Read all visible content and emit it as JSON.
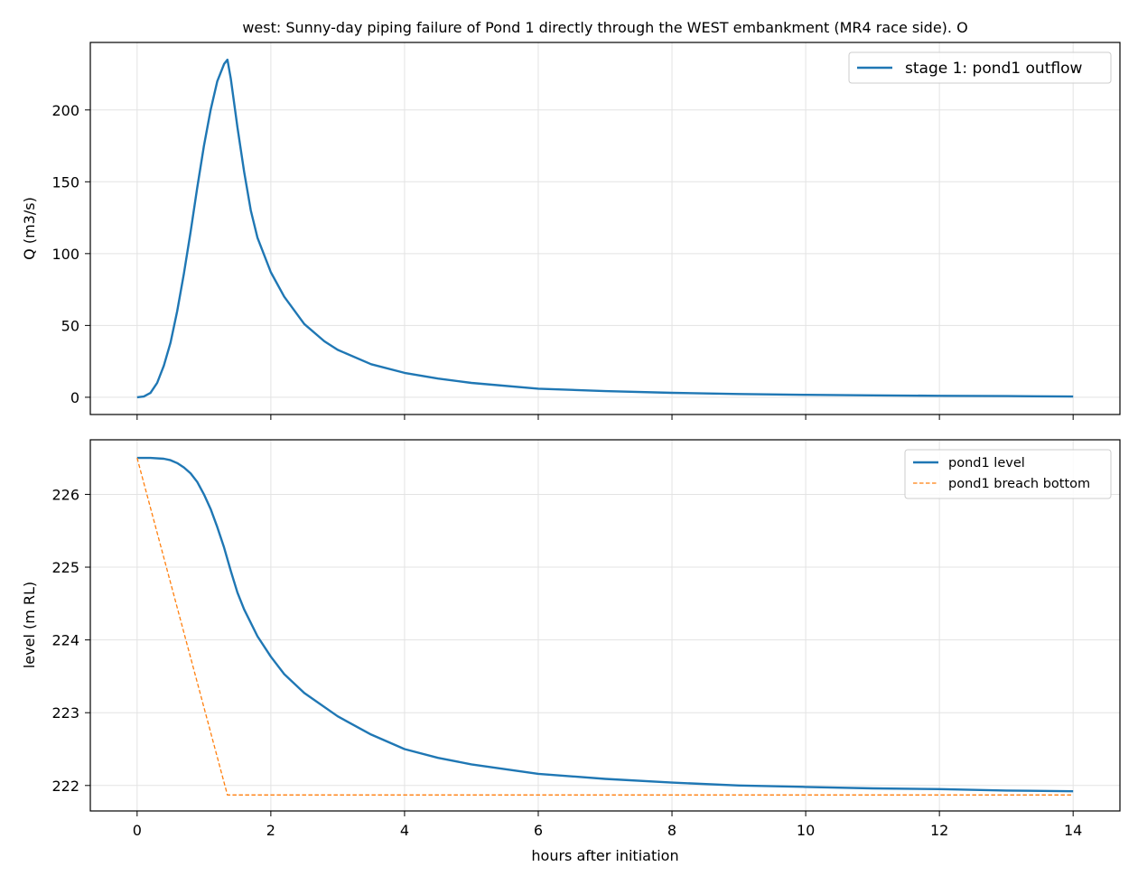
{
  "chart_data": [
    {
      "type": "line",
      "title": "west: Sunny-day piping failure of Pond 1 directly through the WEST embankment (MR4 race side). O",
      "xlabel": "",
      "ylabel": "Q (m3/s)",
      "xlim": [
        -0.7,
        14.7
      ],
      "ylim": [
        -12,
        247
      ],
      "xticks": [
        0,
        2,
        4,
        6,
        8,
        10,
        12,
        14
      ],
      "yticks": [
        0,
        50,
        100,
        150,
        200
      ],
      "grid": true,
      "legend_position": "top-right",
      "series": [
        {
          "name": "stage 1: pond1 outflow",
          "color": "#1f77b4",
          "style": "solid",
          "x": [
            0,
            0.1,
            0.2,
            0.3,
            0.4,
            0.5,
            0.6,
            0.7,
            0.8,
            0.9,
            1.0,
            1.1,
            1.2,
            1.3,
            1.35,
            1.4,
            1.5,
            1.6,
            1.7,
            1.8,
            2.0,
            2.2,
            2.5,
            2.8,
            3.0,
            3.5,
            4.0,
            4.5,
            5.0,
            6.0,
            7.0,
            8.0,
            9.0,
            10.0,
            11.0,
            12.0,
            13.0,
            14.0
          ],
          "y": [
            0,
            0.5,
            3,
            10,
            22,
            38,
            60,
            86,
            115,
            146,
            175,
            200,
            220,
            232,
            235,
            222,
            188,
            157,
            130,
            111,
            87,
            70,
            51,
            39,
            33,
            23,
            17,
            13,
            10,
            6,
            4.3,
            3.1,
            2.3,
            1.7,
            1.3,
            1.0,
            0.8,
            0.5
          ]
        }
      ]
    },
    {
      "type": "line",
      "xlabel": "hours after initiation",
      "ylabel": "level (m RL)",
      "xlim": [
        -0.7,
        14.7
      ],
      "ylim": [
        221.65,
        226.75
      ],
      "xticks": [
        0,
        2,
        4,
        6,
        8,
        10,
        12,
        14
      ],
      "yticks": [
        222,
        223,
        224,
        225,
        226
      ],
      "grid": true,
      "legend_position": "top-right",
      "series": [
        {
          "name": "pond1 level",
          "color": "#1f77b4",
          "style": "solid",
          "x": [
            0,
            0.2,
            0.4,
            0.5,
            0.6,
            0.7,
            0.8,
            0.9,
            1.0,
            1.1,
            1.2,
            1.3,
            1.4,
            1.5,
            1.6,
            1.8,
            2.0,
            2.2,
            2.5,
            3.0,
            3.5,
            4.0,
            4.5,
            5.0,
            6.0,
            7.0,
            8.0,
            9.0,
            10.0,
            11.0,
            12.0,
            13.0,
            14.0
          ],
          "y": [
            226.5,
            226.5,
            226.49,
            226.47,
            226.43,
            226.37,
            226.29,
            226.17,
            226.0,
            225.8,
            225.55,
            225.27,
            224.95,
            224.65,
            224.42,
            224.05,
            223.77,
            223.53,
            223.27,
            222.95,
            222.7,
            222.5,
            222.38,
            222.29,
            222.16,
            222.09,
            222.04,
            222.0,
            221.98,
            221.96,
            221.95,
            221.93,
            221.92
          ]
        },
        {
          "name": "pond1 breach bottom",
          "color": "#ff7f0e",
          "style": "dashed",
          "x": [
            0,
            1.35,
            14
          ],
          "y": [
            226.5,
            221.87,
            221.87
          ]
        }
      ]
    }
  ]
}
